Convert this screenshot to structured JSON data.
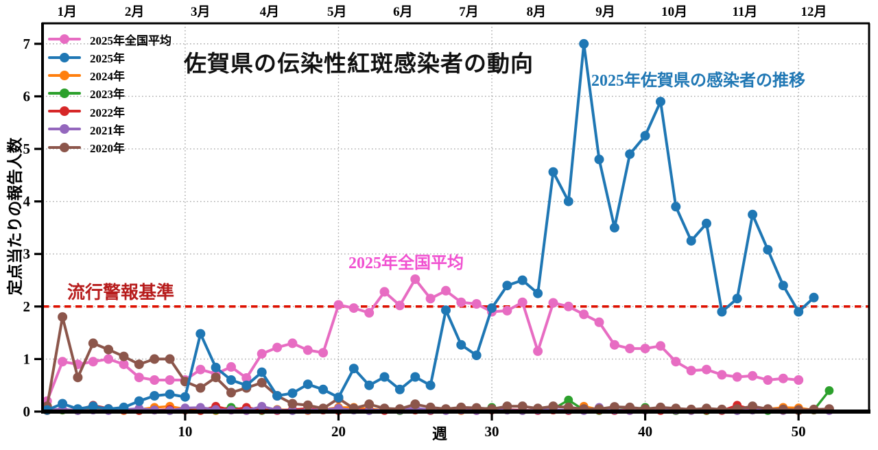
{
  "chart_data": {
    "type": "line",
    "title": "佐賀県の伝染性紅斑感染者の動向",
    "xlabel": "週",
    "ylabel": "定点当たりの報告人数",
    "xlim": [
      0.7,
      54.6
    ],
    "ylim": [
      0,
      7.39
    ],
    "x_ticks": [
      10,
      20,
      30,
      40,
      50
    ],
    "y_ticks": [
      0,
      1,
      2,
      3,
      4,
      5,
      6,
      7
    ],
    "grid": true,
    "legend_position": "upper-left",
    "months": [
      {
        "label": "1月",
        "week": 2.3
      },
      {
        "label": "2月",
        "week": 6.7
      },
      {
        "label": "3月",
        "week": 11.0
      },
      {
        "label": "4月",
        "week": 15.5
      },
      {
        "label": "5月",
        "week": 19.9
      },
      {
        "label": "6月",
        "week": 24.2
      },
      {
        "label": "7月",
        "week": 28.5
      },
      {
        "label": "8月",
        "week": 32.9
      },
      {
        "label": "9月",
        "week": 37.4
      },
      {
        "label": "10月",
        "week": 41.9
      },
      {
        "label": "11月",
        "week": 46.5
      },
      {
        "label": "12月",
        "week": 51.0
      }
    ],
    "threshold": {
      "value": 2,
      "label": "流行警報基準",
      "line_color": "#dd1100",
      "label_color": "#b71c1c"
    },
    "annotations": [
      {
        "text": "2025年佐賀県の感染者の推移",
        "color": "#1f77b4"
      },
      {
        "text": "2025年全国平均",
        "color": "#f050d0"
      }
    ],
    "series": [
      {
        "name": "2025年全国平均",
        "color": "#e76cc2",
        "start_week": 1,
        "values": [
          0.2,
          0.95,
          0.9,
          0.95,
          1.0,
          0.9,
          0.65,
          0.6,
          0.6,
          0.6,
          0.8,
          0.72,
          0.85,
          0.64,
          1.1,
          1.22,
          1.3,
          1.17,
          1.12,
          2.03,
          1.97,
          1.88,
          2.28,
          2.02,
          2.52,
          2.15,
          2.3,
          2.08,
          2.05,
          1.9,
          1.92,
          2.08,
          1.15,
          2.07,
          2.0,
          1.85,
          1.7,
          1.27,
          1.2,
          1.2,
          1.25,
          0.95,
          0.78,
          0.8,
          0.7,
          0.66,
          0.68,
          0.6,
          0.63,
          0.6
        ]
      },
      {
        "name": "2025年",
        "color": "#1f77b4",
        "start_week": 1,
        "values": [
          0.03,
          0.15,
          0.05,
          0.1,
          0.05,
          0.08,
          0.2,
          0.3,
          0.33,
          0.28,
          1.48,
          0.84,
          0.6,
          0.5,
          0.75,
          0.3,
          0.35,
          0.52,
          0.42,
          0.27,
          0.82,
          0.5,
          0.66,
          0.42,
          0.66,
          0.5,
          1.93,
          1.27,
          1.07,
          1.97,
          2.4,
          2.5,
          2.25,
          4.56,
          4.0,
          7.0,
          4.8,
          3.5,
          4.9,
          5.25,
          5.9,
          3.9,
          3.25,
          3.58,
          1.9,
          2.15,
          3.75,
          3.08,
          2.4,
          1.9,
          2.17
        ]
      },
      {
        "name": "2024年",
        "color": "#ff7f0e",
        "start_week": 1,
        "values": [
          0.02,
          0.03,
          0.02,
          0.04,
          0.03,
          0.02,
          0.04,
          0.08,
          0.1,
          0.05,
          0.03,
          0.02,
          0.03,
          0.02,
          0.03,
          0.04,
          0.03,
          0.02,
          0.04,
          0.08,
          0.08,
          0.05,
          0.03,
          0.02,
          0.03,
          0.04,
          0.03,
          0.02,
          0.03,
          0.04,
          0.03,
          0.02,
          0.04,
          0.03,
          0.02,
          0.1,
          0.04,
          0.03,
          0.02,
          0.03,
          0.04,
          0.02,
          0.03,
          0.02,
          0.03,
          0.04,
          0.03,
          0.05,
          0.08,
          0.07,
          0.03,
          0.04
        ]
      },
      {
        "name": "2023年",
        "color": "#2ca02c",
        "start_week": 1,
        "values": [
          0.02,
          0.03,
          0.02,
          0.07,
          0.05,
          0.03,
          0.02,
          0.03,
          0.02,
          0.03,
          0.02,
          0.03,
          0.08,
          0.03,
          0.02,
          0.03,
          0.02,
          0.04,
          0.03,
          0.05,
          0.03,
          0.02,
          0.03,
          0.02,
          0.03,
          0.02,
          0.03,
          0.04,
          0.03,
          0.08,
          0.03,
          0.02,
          0.03,
          0.05,
          0.22,
          0.03,
          0.02,
          0.03,
          0.04,
          0.08,
          0.03,
          0.02,
          0.03,
          0.02,
          0.03,
          0.02,
          0.03,
          0.02,
          0.03,
          0.02,
          0.03,
          0.4
        ]
      },
      {
        "name": "2022年",
        "color": "#d62728",
        "start_week": 1,
        "values": [
          0.02,
          0.04,
          0.03,
          0.12,
          0.06,
          0.03,
          0.02,
          0.03,
          0.04,
          0.03,
          0.02,
          0.1,
          0.03,
          0.08,
          0.03,
          0.02,
          0.04,
          0.06,
          0.03,
          0.02,
          0.04,
          0.03,
          0.02,
          0.05,
          0.03,
          0.02,
          0.03,
          0.04,
          0.02,
          0.03,
          0.04,
          0.03,
          0.02,
          0.03,
          0.02,
          0.04,
          0.03,
          0.02,
          0.04,
          0.03,
          0.02,
          0.03,
          0.04,
          0.03,
          0.02,
          0.12,
          0.04,
          0.05,
          0.03,
          0.02,
          0.04,
          0.03
        ]
      },
      {
        "name": "2021年",
        "color": "#9467bd",
        "start_week": 1,
        "values": [
          0.03,
          0.05,
          0.02,
          0.03,
          0.02,
          0.04,
          0.06,
          0.03,
          0.02,
          0.07,
          0.08,
          0.04,
          0.03,
          0.02,
          0.1,
          0.03,
          0.02,
          0.03,
          0.04,
          0.06,
          0.03,
          0.02,
          0.04,
          0.03,
          0.07,
          0.03,
          0.02,
          0.03,
          0.02,
          0.04,
          0.03,
          0.02,
          0.03,
          0.04,
          0.03,
          0.02,
          0.08,
          0.03,
          0.02,
          0.03,
          0.04,
          0.03,
          0.02,
          0.05,
          0.03,
          0.02,
          0.03,
          0.04,
          0.02,
          0.03,
          0.04,
          0.02
        ]
      },
      {
        "name": "2020年",
        "color": "#8c564b",
        "start_week": 1,
        "values": [
          0.1,
          1.8,
          0.65,
          1.3,
          1.18,
          1.05,
          0.9,
          1.0,
          1.0,
          0.57,
          0.45,
          0.65,
          0.36,
          0.45,
          0.55,
          0.3,
          0.15,
          0.12,
          0.06,
          0.25,
          0.06,
          0.14,
          0.06,
          0.05,
          0.14,
          0.08,
          0.05,
          0.08,
          0.07,
          0.05,
          0.1,
          0.1,
          0.06,
          0.1,
          0.08,
          0.05,
          0.05,
          0.09,
          0.08,
          0.05,
          0.08,
          0.06,
          0.04,
          0.06,
          0.04,
          0.05,
          0.1,
          0.05,
          0.04,
          0.03,
          0.04,
          0.05
        ]
      }
    ]
  }
}
